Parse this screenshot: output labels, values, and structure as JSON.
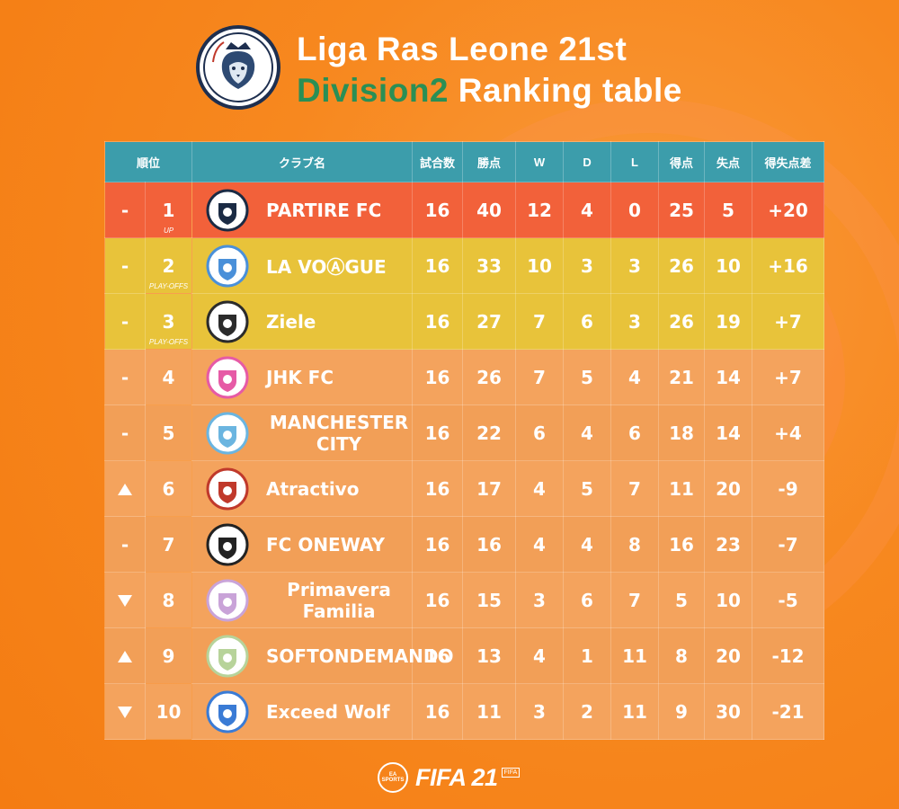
{
  "header": {
    "title_line1": "Liga Ras Leone 21st",
    "title_division": "Division2",
    "title_rest": "Ranking table"
  },
  "table": {
    "headers": {
      "rank": "順位",
      "club": "クラブ名",
      "played": "試合数",
      "points": "勝点",
      "w": "W",
      "d": "D",
      "l": "L",
      "gf": "得点",
      "ga": "失点",
      "gd": "得失点差"
    },
    "rows": [
      {
        "move": "-",
        "rank": "1",
        "note": "UP",
        "club": "PARTIRE FC",
        "played": "16",
        "points": "40",
        "w": "12",
        "d": "4",
        "l": "0",
        "gf": "25",
        "ga": "5",
        "gd": "+20"
      },
      {
        "move": "-",
        "rank": "2",
        "note": "PLAY-OFFS",
        "club": "LA VOⒶGUE",
        "played": "16",
        "points": "33",
        "w": "10",
        "d": "3",
        "l": "3",
        "gf": "26",
        "ga": "10",
        "gd": "+16"
      },
      {
        "move": "-",
        "rank": "3",
        "note": "PLAY-OFFS",
        "club": "Ziele",
        "played": "16",
        "points": "27",
        "w": "7",
        "d": "6",
        "l": "3",
        "gf": "26",
        "ga": "19",
        "gd": "+7"
      },
      {
        "move": "-",
        "rank": "4",
        "note": "",
        "club": "JHK FC",
        "played": "16",
        "points": "26",
        "w": "7",
        "d": "5",
        "l": "4",
        "gf": "21",
        "ga": "14",
        "gd": "+7"
      },
      {
        "move": "-",
        "rank": "5",
        "note": "",
        "club": "MANCHESTER CITY",
        "played": "16",
        "points": "22",
        "w": "6",
        "d": "4",
        "l": "6",
        "gf": "18",
        "ga": "14",
        "gd": "+4"
      },
      {
        "move": "up",
        "rank": "6",
        "note": "",
        "club": "Atractivo",
        "played": "16",
        "points": "17",
        "w": "4",
        "d": "5",
        "l": "7",
        "gf": "11",
        "ga": "20",
        "gd": "-9"
      },
      {
        "move": "-",
        "rank": "7",
        "note": "",
        "club": "FC ONEWAY",
        "played": "16",
        "points": "16",
        "w": "4",
        "d": "4",
        "l": "8",
        "gf": "16",
        "ga": "23",
        "gd": "-7"
      },
      {
        "move": "down",
        "rank": "8",
        "note": "",
        "club": "Primavera Familia",
        "played": "16",
        "points": "15",
        "w": "3",
        "d": "6",
        "l": "7",
        "gf": "5",
        "ga": "10",
        "gd": "-5"
      },
      {
        "move": "up",
        "rank": "9",
        "note": "",
        "club": "SOFTONDEMANDO",
        "played": "16",
        "points": "13",
        "w": "4",
        "d": "1",
        "l": "11",
        "gf": "8",
        "ga": "20",
        "gd": "-12"
      },
      {
        "move": "down",
        "rank": "10",
        "note": "",
        "club": "Exceed Wolf",
        "played": "16",
        "points": "11",
        "w": "3",
        "d": "2",
        "l": "11",
        "gf": "9",
        "ga": "30",
        "gd": "-21"
      }
    ]
  },
  "footer": {
    "ea_label": "EA SPORTS",
    "fifa_label": "FIFA 21",
    "fifa_mark": "FIFA"
  },
  "colors": {
    "background": "#f7881f",
    "header_row": "#3c9dab",
    "promotion_row": "#f2613a",
    "playoff_row": "#e8c33a",
    "normal_row": "#f4a35d",
    "division_text": "#2a8f55"
  }
}
